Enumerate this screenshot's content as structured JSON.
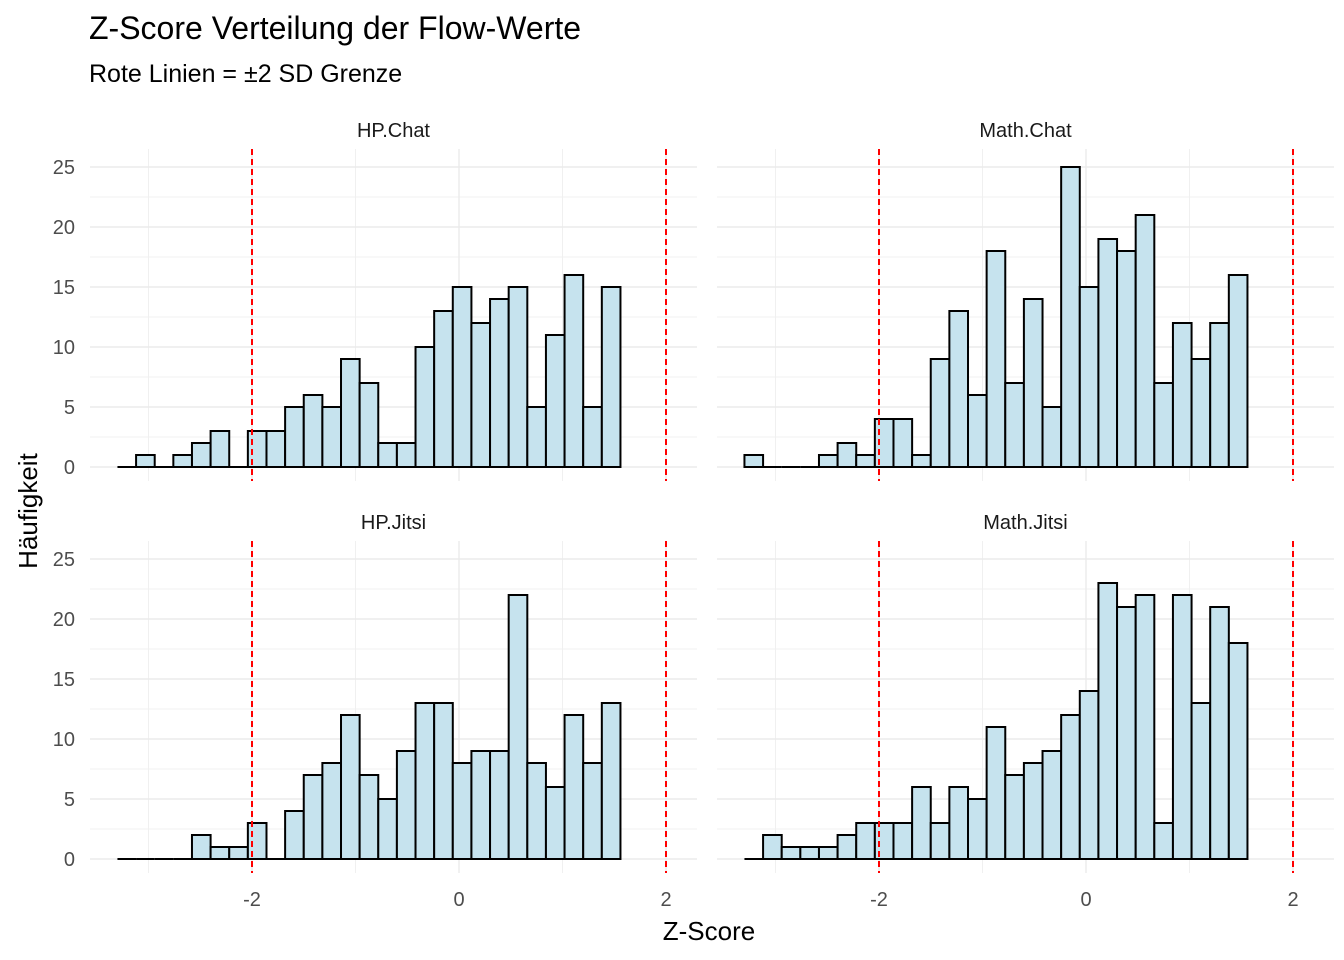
{
  "chart_data": {
    "type": "histogram",
    "title": "Z-Score Verteilung der Flow-Werte",
    "subtitle": "Rote Linien = ±2 SD Grenze",
    "xlabel": "Z-Score",
    "ylabel": "Häufigkeit",
    "xlim": [
      -3.3,
      2.05
    ],
    "ylim": [
      0,
      25
    ],
    "x_ticks": [
      -2,
      0,
      2
    ],
    "x_tick_labels": [
      "-2",
      "0",
      "2"
    ],
    "y_ticks": [
      0,
      5,
      10,
      15,
      20,
      25
    ],
    "y_tick_labels": [
      "0",
      "5",
      "10",
      "15",
      "20",
      "25"
    ],
    "reference_lines": [
      -2,
      2
    ],
    "reference_line_color": "#ff0000",
    "bar_fill": "#c6e3ee",
    "bar_stroke": "#000000",
    "grid": true,
    "bin_width": 0.18,
    "facets": [
      {
        "label": "HP.Chat",
        "bins_start": [
          -3.3,
          -3.12,
          -2.94,
          -2.76,
          -2.58,
          -2.4,
          -2.22,
          -2.04,
          -1.86,
          -1.68,
          -1.5,
          -1.32,
          -1.14,
          -0.96,
          -0.78,
          -0.6,
          -0.42,
          -0.24,
          -0.06,
          0.12,
          0.3,
          0.48,
          0.66,
          0.84,
          1.02,
          1.2,
          1.38
        ],
        "counts": [
          0,
          1,
          0,
          1,
          2,
          3,
          0,
          3,
          3,
          5,
          6,
          5,
          9,
          7,
          2,
          2,
          10,
          13,
          15,
          12,
          14,
          15,
          5,
          11,
          16,
          5,
          15
        ]
      },
      {
        "label": "Math.Chat",
        "bins_start": [
          -3.3,
          -3.12,
          -2.94,
          -2.76,
          -2.58,
          -2.4,
          -2.22,
          -2.04,
          -1.86,
          -1.68,
          -1.5,
          -1.32,
          -1.14,
          -0.96,
          -0.78,
          -0.6,
          -0.42,
          -0.24,
          -0.06,
          0.12,
          0.3,
          0.48,
          0.66,
          0.84,
          1.02,
          1.2,
          1.38
        ],
        "counts": [
          1,
          0,
          0,
          0,
          1,
          2,
          1,
          4,
          4,
          1,
          9,
          13,
          6,
          18,
          7,
          14,
          5,
          25,
          15,
          19,
          18,
          21,
          7,
          12,
          9,
          12,
          16
        ]
      },
      {
        "label": "HP.Jitsi",
        "bins_start": [
          -3.3,
          -3.12,
          -2.94,
          -2.76,
          -2.58,
          -2.4,
          -2.22,
          -2.04,
          -1.86,
          -1.68,
          -1.5,
          -1.32,
          -1.14,
          -0.96,
          -0.78,
          -0.6,
          -0.42,
          -0.24,
          -0.06,
          0.12,
          0.3,
          0.48,
          0.66,
          0.84,
          1.02,
          1.2,
          1.38
        ],
        "counts": [
          0,
          0,
          0,
          0,
          2,
          1,
          1,
          3,
          0,
          4,
          7,
          8,
          12,
          7,
          5,
          9,
          13,
          13,
          8,
          9,
          9,
          22,
          8,
          6,
          12,
          8,
          13
        ]
      },
      {
        "label": "Math.Jitsi",
        "bins_start": [
          -3.3,
          -3.12,
          -2.94,
          -2.76,
          -2.58,
          -2.4,
          -2.22,
          -2.04,
          -1.86,
          -1.68,
          -1.5,
          -1.32,
          -1.14,
          -0.96,
          -0.78,
          -0.6,
          -0.42,
          -0.24,
          -0.06,
          0.12,
          0.3,
          0.48,
          0.66,
          0.84,
          1.02,
          1.2,
          1.38
        ],
        "counts": [
          0,
          2,
          1,
          1,
          1,
          2,
          3,
          3,
          3,
          6,
          3,
          6,
          5,
          11,
          7,
          8,
          9,
          12,
          14,
          23,
          21,
          22,
          3,
          22,
          13,
          21,
          18
        ]
      }
    ]
  }
}
